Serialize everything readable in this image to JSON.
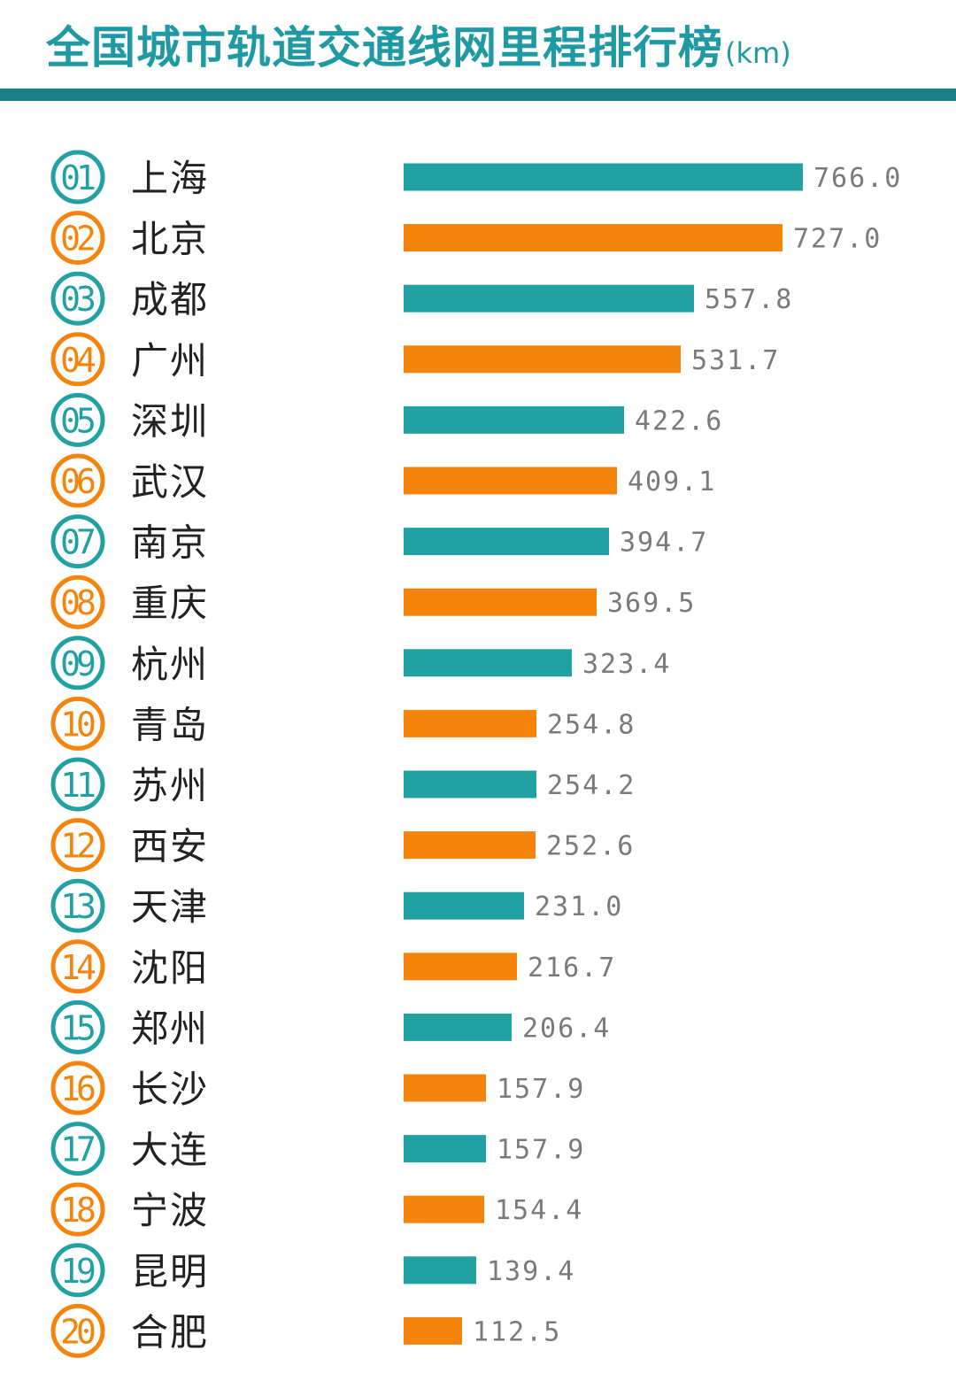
{
  "title": "全国城市轨道交通线网里程排行榜",
  "unit": "(km)",
  "colors": {
    "teal": "#22a1a3",
    "orange": "#f5840c",
    "title": "#1f9aa3",
    "rule": "#1b7f86",
    "value_text": "#7a7a7a",
    "city_text": "#222222"
  },
  "chart_data": {
    "type": "bar",
    "orientation": "horizontal",
    "title": "全国城市轨道交通线网里程排行榜",
    "unit": "(km)",
    "ranks": [
      "01",
      "02",
      "03",
      "04",
      "05",
      "06",
      "07",
      "08",
      "09",
      "10",
      "11",
      "12",
      "13",
      "14",
      "15",
      "16",
      "17",
      "18",
      "19",
      "20"
    ],
    "categories": [
      "上海",
      "北京",
      "成都",
      "广州",
      "深圳",
      "武汉",
      "南京",
      "重庆",
      "杭州",
      "青岛",
      "苏州",
      "西安",
      "天津",
      "沈阳",
      "郑州",
      "长沙",
      "大连",
      "宁波",
      "昆明",
      "合肥"
    ],
    "values": [
      766.0,
      727.0,
      557.8,
      531.7,
      422.6,
      409.1,
      394.7,
      369.5,
      323.4,
      254.8,
      254.2,
      252.6,
      231.0,
      216.7,
      206.4,
      157.9,
      157.9,
      154.4,
      139.4,
      112.5
    ],
    "value_labels": [
      "766.0",
      "727.0",
      "557.8",
      "531.7",
      "422.6",
      "409.1",
      "394.7",
      "369.5",
      "323.4",
      "254.8",
      "254.2",
      "252.6",
      "231.0",
      "216.7",
      "206.4",
      "157.9",
      "157.9",
      "154.4",
      "139.4",
      "112.5"
    ],
    "color_pattern": [
      "teal",
      "orange"
    ],
    "xlim": [
      0,
      766.0
    ],
    "grid": false,
    "legend": "none"
  }
}
